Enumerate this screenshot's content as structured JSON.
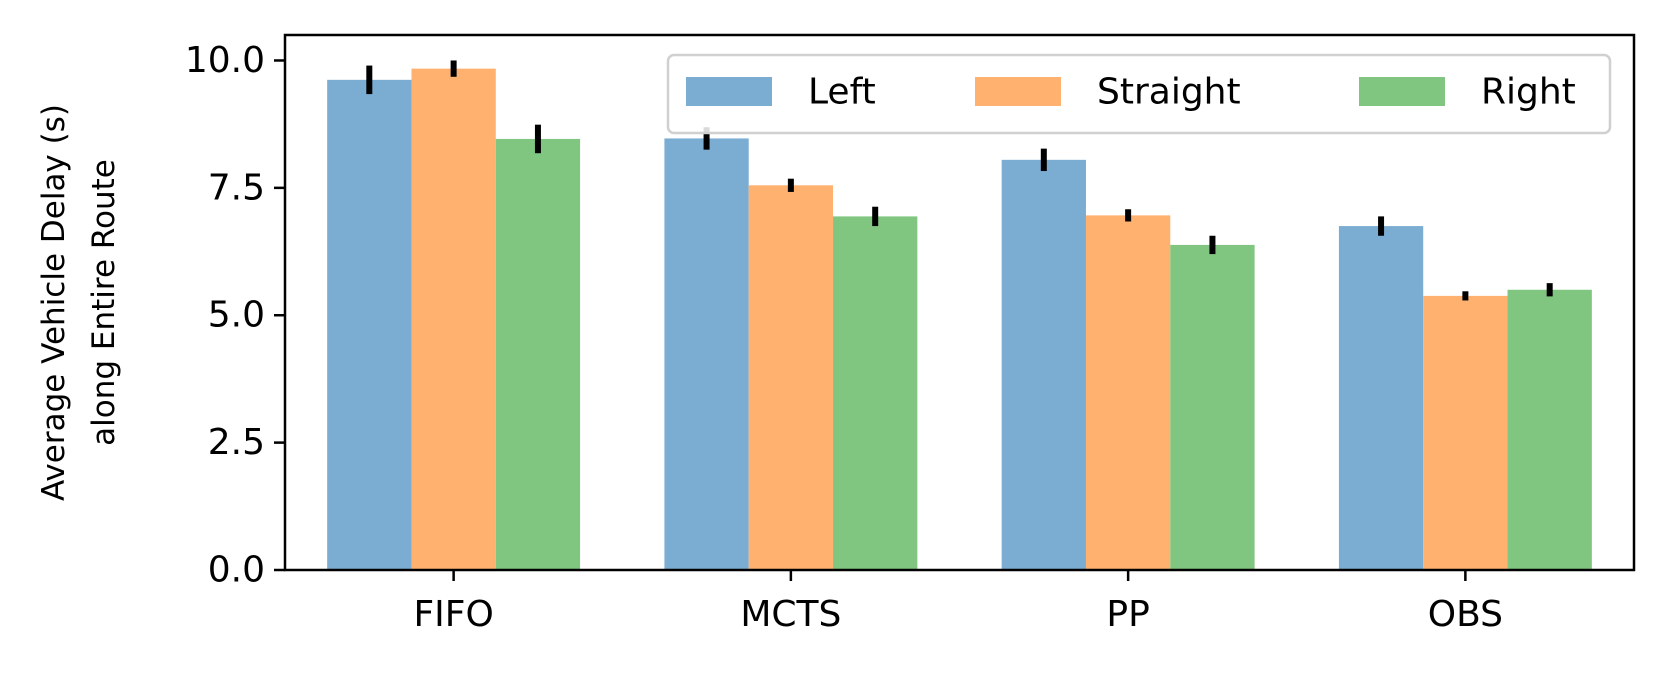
{
  "chart_data": {
    "type": "bar",
    "title": "",
    "xlabel": "",
    "ylabel": [
      "Average Vehicle Delay (s)",
      "along Entire Route"
    ],
    "categories": [
      "FIFO",
      "MCTS",
      "PP",
      "OBS"
    ],
    "ylim": [
      0,
      10.5
    ],
    "yticks": [
      0.0,
      2.5,
      5.0,
      7.5,
      10.0
    ],
    "ytick_labels": [
      "0.0",
      "2.5",
      "5.0",
      "7.5",
      "10.0"
    ],
    "grid": false,
    "legend_position": "top-right",
    "series": [
      {
        "name": "Left",
        "color": "#7BADD3",
        "values": [
          9.62,
          8.47,
          8.05,
          6.75
        ],
        "errors": [
          0.28,
          0.22,
          0.22,
          0.19
        ]
      },
      {
        "name": "Straight",
        "color": "#FFB26F",
        "values": [
          9.84,
          7.55,
          6.96,
          5.38
        ],
        "errors": [
          0.16,
          0.13,
          0.12,
          0.09
        ]
      },
      {
        "name": "Right",
        "color": "#80C680",
        "values": [
          8.46,
          6.94,
          6.38,
          5.5
        ],
        "errors": [
          0.28,
          0.19,
          0.18,
          0.13
        ]
      }
    ]
  }
}
